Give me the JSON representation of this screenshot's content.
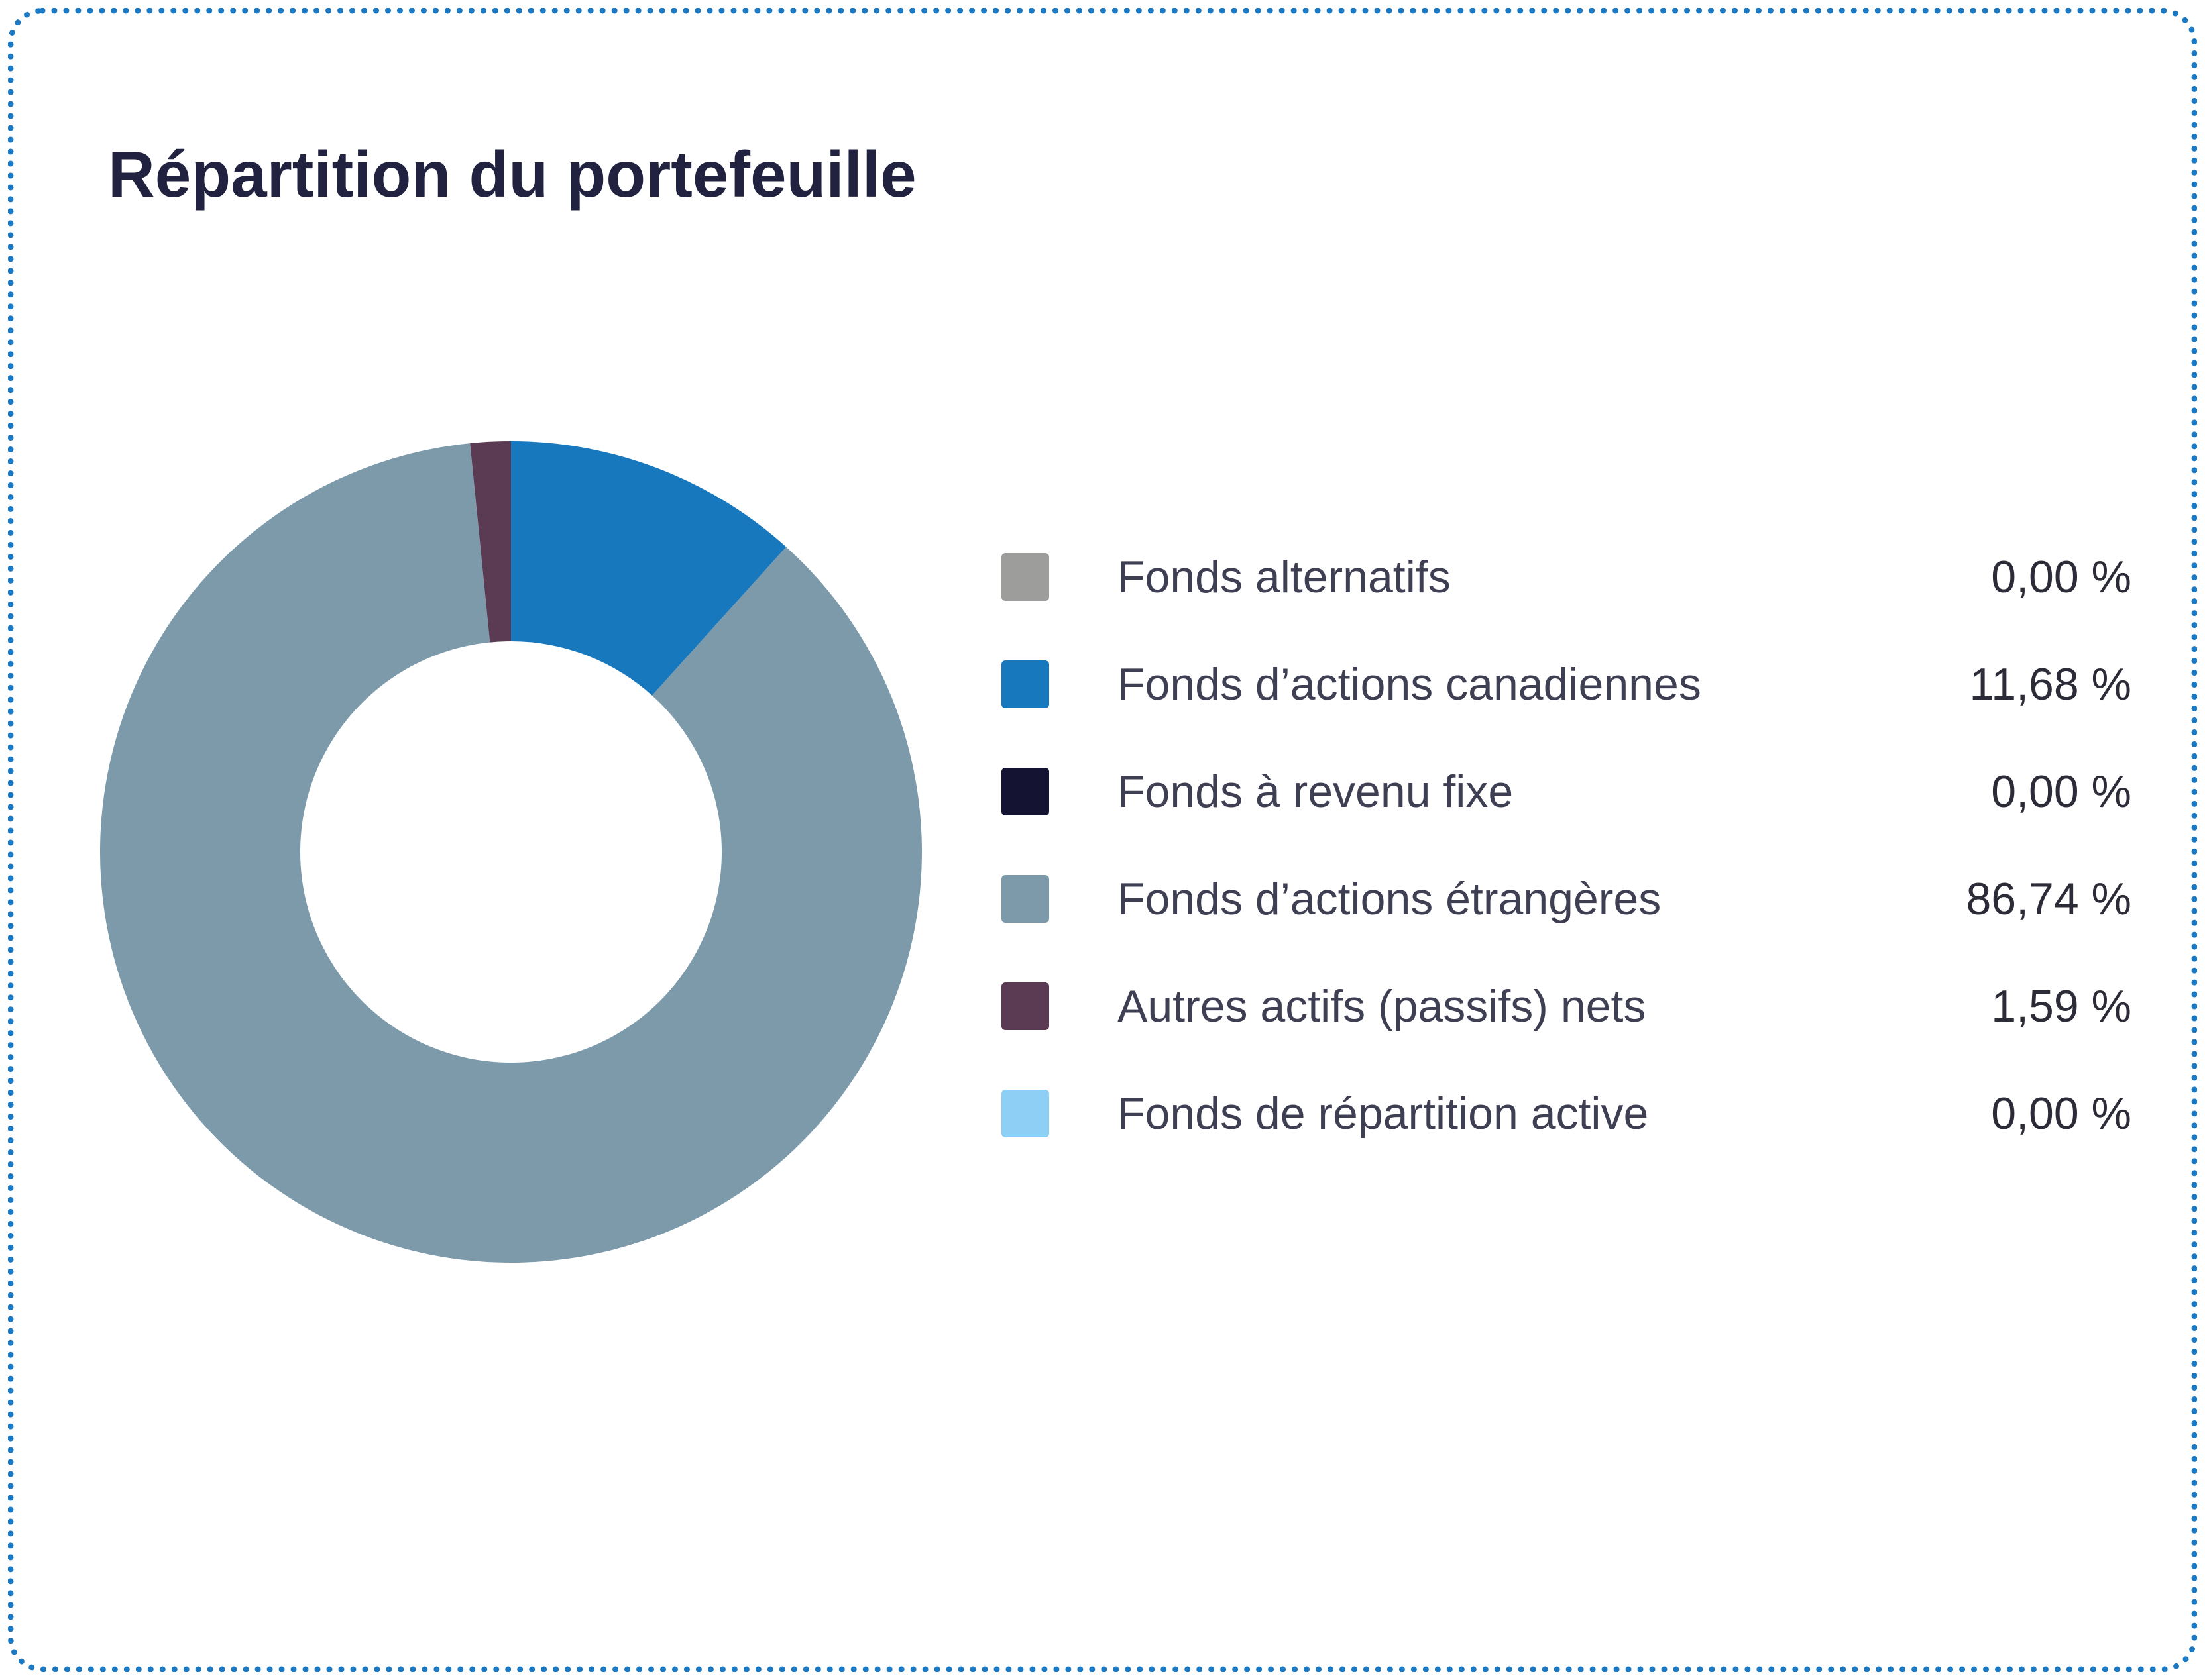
{
  "card": {
    "title": "Répartition du portefeuille",
    "border_color": "#1b78c2",
    "background": "#ffffff"
  },
  "chart_data": {
    "type": "pie",
    "donut": true,
    "title": "Répartition du portefeuille",
    "legend_position": "right",
    "start_angle_deg": -90,
    "direction": "clockwise",
    "series": [
      {
        "label": "Fonds alternatifs",
        "value": 0.0,
        "display": "0,00 %",
        "color": "#9d9d9c"
      },
      {
        "label": "Fonds d’actions canadiennes",
        "value": 11.68,
        "display": "11,68 %",
        "color": "#1878be"
      },
      {
        "label": "Fonds à revenu fixe",
        "value": 0.0,
        "display": "0,00 %",
        "color": "#141432"
      },
      {
        "label": "Fonds d’actions étrangères",
        "value": 86.74,
        "display": "86,74 %",
        "color": "#7d9aab"
      },
      {
        "label": "Autres actifs (passifs) nets",
        "value": 1.59,
        "display": "1,59 %",
        "color": "#5b3a53"
      },
      {
        "label": "Fonds de répartition active",
        "value": 0.0,
        "display": "0,00 %",
        "color": "#8ed0f5"
      }
    ]
  }
}
